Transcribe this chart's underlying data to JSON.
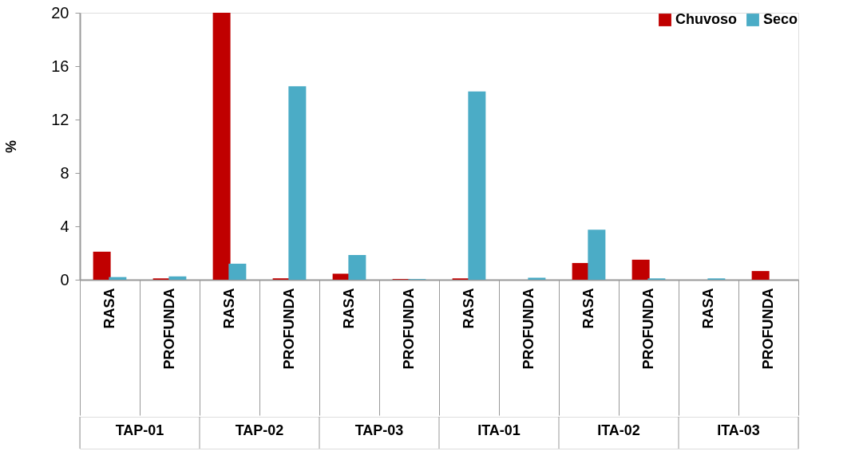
{
  "chart_data": {
    "type": "bar",
    "ylabel": "%",
    "categories": [
      "RASA",
      "PROFUNDA",
      "RASA",
      "PROFUNDA",
      "RASA",
      "PROFUNDA",
      "RASA",
      "PROFUNDA",
      "RASA",
      "PROFUNDA",
      "RASA",
      "PROFUNDA"
    ],
    "series": [
      {
        "name": "Chuvoso",
        "color": "#c00000",
        "values": [
          2.1,
          0.1,
          20,
          0.1,
          0.45,
          0.05,
          0.1,
          0,
          1.25,
          1.5,
          0,
          0.65
        ]
      },
      {
        "name": "Seco",
        "color": "#4bacc6",
        "values": [
          0.2,
          0.25,
          1.2,
          14.5,
          1.85,
          0.05,
          14.1,
          0.15,
          3.75,
          0.1,
          0.1,
          0
        ]
      }
    ],
    "annotations": [
      "TAP-01",
      "TAP-02",
      "TAP-03",
      "ITA-01",
      "ITA-02",
      "ITA-03"
    ],
    "ylim": [
      0,
      20
    ],
    "yticks": [
      0,
      4,
      8,
      12,
      16,
      20
    ],
    "grid": false,
    "legend": "top right"
  }
}
